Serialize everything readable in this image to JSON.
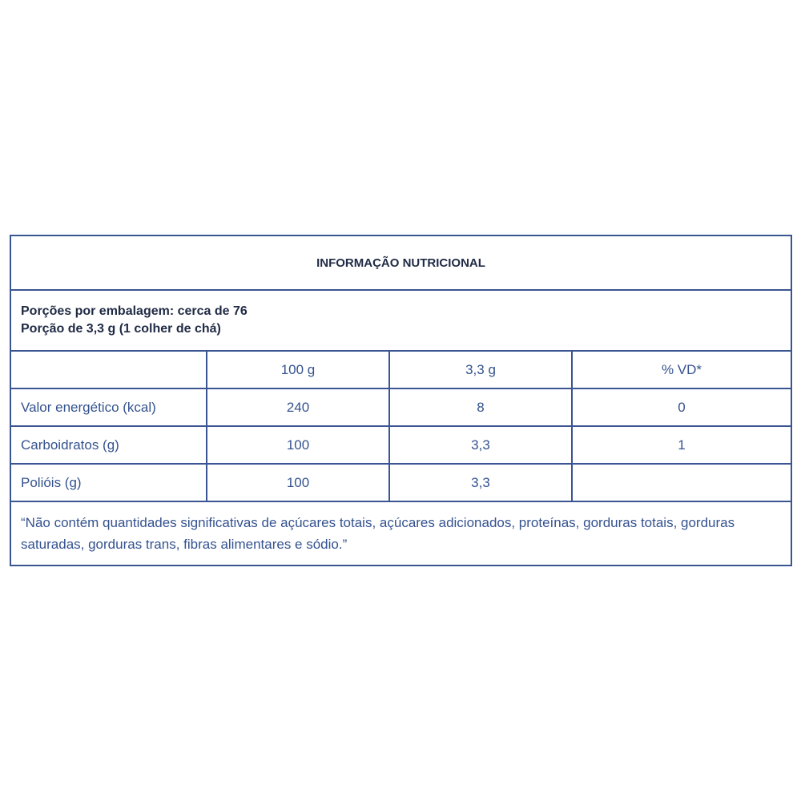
{
  "title": "INFORMAÇÃO NUTRICIONAL",
  "portions_per_package": "Porções por embalagem: cerca de 76",
  "portion": "Porção de 3,3 g (1 colher de chá)",
  "columns": [
    "",
    "100 g",
    "3,3 g",
    "% VD*"
  ],
  "rows": [
    {
      "label": "Valor energético (kcal)",
      "per100": "240",
      "perPortion": "8",
      "vd": "0"
    },
    {
      "label": "Carboidratos (g)",
      "per100": "100",
      "perPortion": "3,3",
      "vd": "1"
    },
    {
      "label": "Polióis (g)",
      "per100": "100",
      "perPortion": "3,3",
      "vd": ""
    }
  ],
  "footnote": "“Não contém quantidades significativas de açúcares totais, açúcares adicionados, proteínas, gorduras totais, gorduras saturadas, gorduras trans, fibras alimentares e sódio.”",
  "colors": {
    "border": "#3a5592",
    "text": "#34528f",
    "bold_text": "#1f2a44"
  }
}
